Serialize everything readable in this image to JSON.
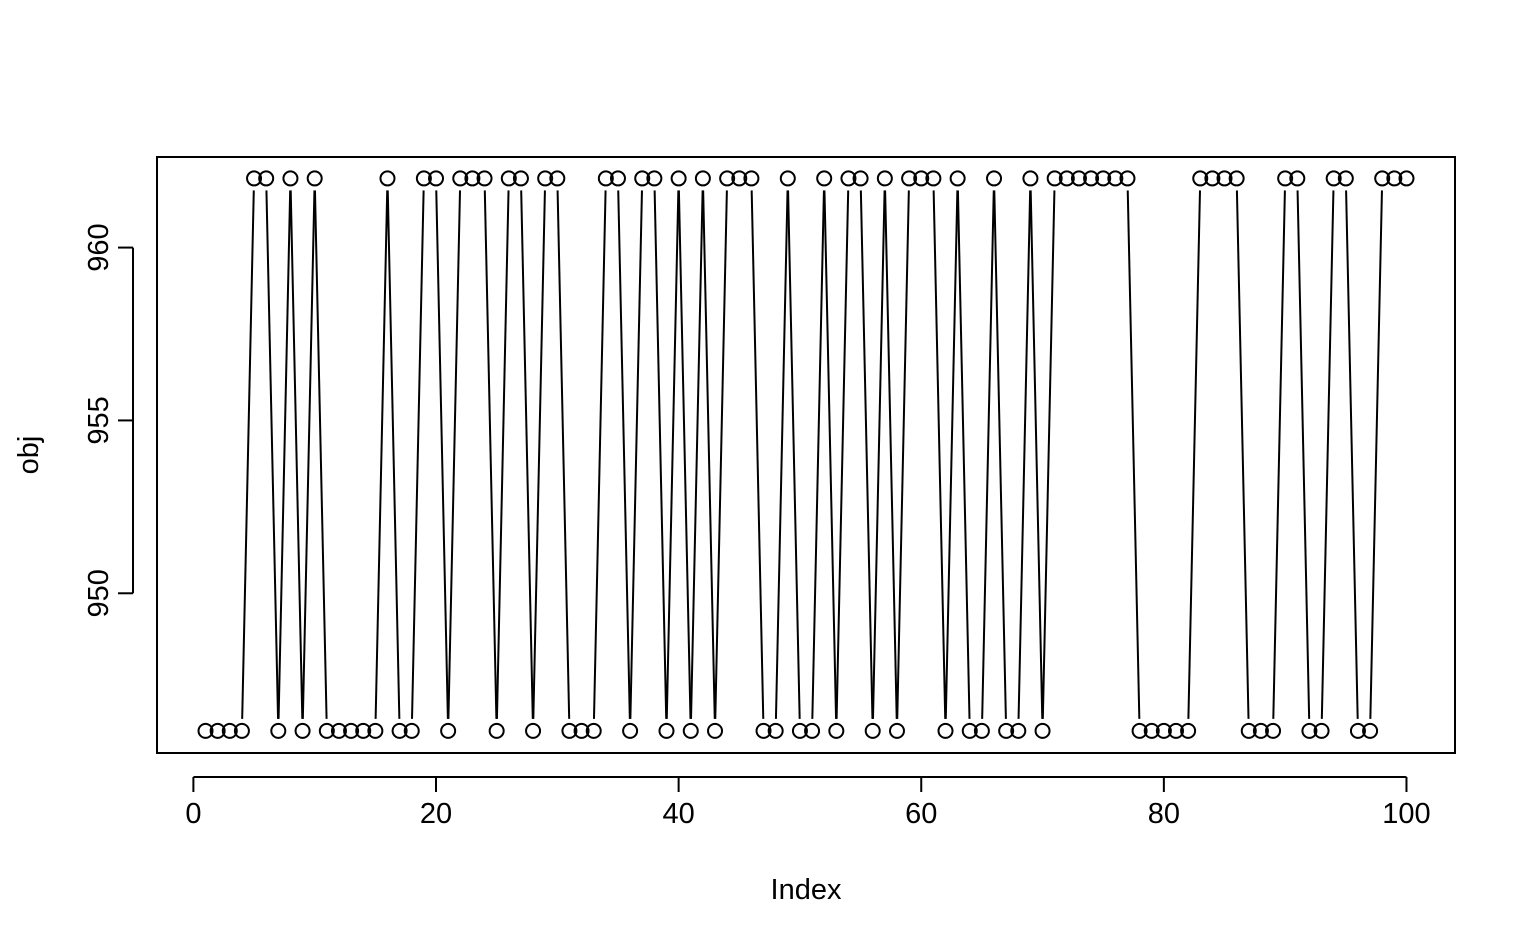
{
  "chart_data": {
    "type": "scatter",
    "plot_type": "b",
    "title": "",
    "xlabel": "Index",
    "ylabel": "obj",
    "xlim": [
      -3,
      104
    ],
    "ylim": [
      945.38,
      962.62
    ],
    "x_ticks": [
      0,
      20,
      40,
      60,
      80,
      100
    ],
    "x_tick_labels": [
      "0",
      "20",
      "40",
      "60",
      "80",
      "100"
    ],
    "y_ticks": [
      950,
      955,
      960
    ],
    "y_tick_labels": [
      "950",
      "955",
      "960"
    ],
    "levels": {
      "low": 946.02,
      "high": 962.0
    },
    "x": [
      1,
      2,
      3,
      4,
      5,
      6,
      7,
      8,
      9,
      10,
      11,
      12,
      13,
      14,
      15,
      16,
      17,
      18,
      19,
      20,
      21,
      22,
      23,
      24,
      25,
      26,
      27,
      28,
      29,
      30,
      31,
      32,
      33,
      34,
      35,
      36,
      37,
      38,
      39,
      40,
      41,
      42,
      43,
      44,
      45,
      46,
      47,
      48,
      49,
      50,
      51,
      52,
      53,
      54,
      55,
      56,
      57,
      58,
      59,
      60,
      61,
      62,
      63,
      64,
      65,
      66,
      67,
      68,
      69,
      70,
      71,
      72,
      73,
      74,
      75,
      76,
      77,
      78,
      79,
      80,
      81,
      82,
      83,
      84,
      85,
      86,
      87,
      88,
      89,
      90,
      91,
      92,
      93,
      94,
      95,
      96,
      97,
      98,
      99,
      100
    ],
    "y": [
      946.02,
      946.02,
      946.02,
      946.02,
      962.0,
      962.0,
      946.02,
      962.0,
      946.02,
      962.0,
      946.02,
      946.02,
      946.02,
      946.02,
      946.02,
      962.0,
      946.02,
      946.02,
      962.0,
      962.0,
      946.02,
      962.0,
      962.0,
      962.0,
      946.02,
      962.0,
      962.0,
      946.02,
      962.0,
      962.0,
      946.02,
      946.02,
      946.02,
      962.0,
      962.0,
      946.02,
      962.0,
      962.0,
      946.02,
      962.0,
      946.02,
      962.0,
      946.02,
      962.0,
      962.0,
      962.0,
      946.02,
      946.02,
      962.0,
      946.02,
      946.02,
      962.0,
      946.02,
      962.0,
      962.0,
      946.02,
      962.0,
      946.02,
      962.0,
      962.0,
      962.0,
      946.02,
      962.0,
      946.02,
      946.02,
      962.0,
      946.02,
      946.02,
      962.0,
      946.02,
      962.0,
      962.0,
      962.0,
      962.0,
      962.0,
      962.0,
      962.0,
      946.02,
      946.02,
      946.02,
      946.02,
      946.02,
      962.0,
      962.0,
      962.0,
      962.0,
      946.02,
      946.02,
      946.02,
      962.0,
      962.0,
      946.02,
      946.02,
      962.0,
      962.0,
      946.02,
      946.02,
      962.0,
      962.0,
      962.0
    ],
    "grid": false,
    "legend": "none",
    "colors": {
      "line": "#000000",
      "point_stroke": "#000000",
      "point_fill": "#ffffff",
      "background": "#ffffff"
    }
  }
}
